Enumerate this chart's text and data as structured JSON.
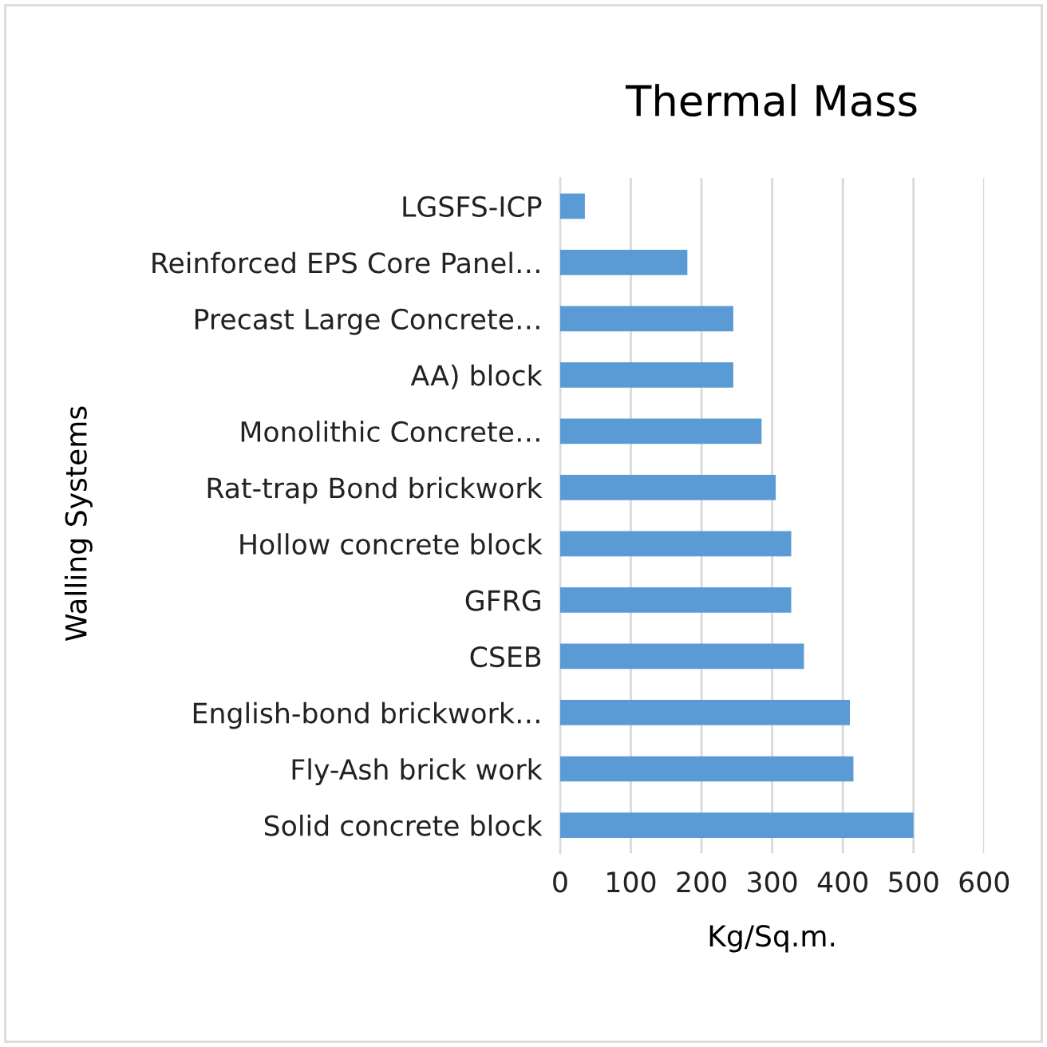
{
  "chart_data": {
    "type": "bar",
    "orientation": "horizontal",
    "title": "Thermal Mass",
    "xlabel": "Kg/Sq.m.",
    "ylabel": "Walling Systems",
    "categories": [
      "LGSFS-ICP",
      "Reinforced EPS Core Panel…",
      "Precast Large Concrete…",
      "AA) block",
      "Monolithic Concrete…",
      "Rat-trap Bond brickwork",
      "Hollow concrete block",
      "GFRG",
      "CSEB",
      "English-bond brickwork…",
      "Fly-Ash brick work",
      "Solid concrete block"
    ],
    "values": [
      35,
      180,
      245,
      245,
      285,
      305,
      327,
      327,
      345,
      410,
      415,
      500
    ],
    "color": "#5b9bd5",
    "xlim": [
      0,
      600
    ],
    "xticks": [
      0,
      100,
      200,
      300,
      400,
      500,
      600
    ],
    "grid": "x"
  }
}
